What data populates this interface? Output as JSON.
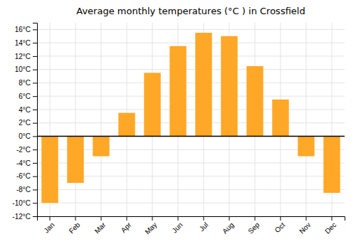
{
  "chart_data": {
    "type": "bar",
    "title": "Average monthly temperatures (°C ) in Crossfield",
    "categories": [
      "Jan",
      "Feb",
      "Mar",
      "Apr",
      "May",
      "Jun",
      "Jul",
      "Aug",
      "Sep",
      "Oct",
      "Nov",
      "Dec"
    ],
    "values": [
      -10.0,
      -7.0,
      -3.0,
      3.5,
      9.5,
      13.5,
      15.5,
      15.0,
      10.5,
      5.5,
      -3.0,
      -8.5
    ],
    "color": "#FFA726",
    "ylim": [
      -12,
      17
    ],
    "yticks": [
      {
        "value": -12,
        "label": "-12°C"
      },
      {
        "value": -10,
        "label": "-10°C"
      },
      {
        "value": -8,
        "label": "-8°C"
      },
      {
        "value": -6,
        "label": "-6°C"
      },
      {
        "value": -4,
        "label": "-4°C"
      },
      {
        "value": -2,
        "label": "-2°C"
      },
      {
        "value": 0,
        "label": "0°C"
      },
      {
        "value": 2,
        "label": "2°C"
      },
      {
        "value": 4,
        "label": "4°C"
      },
      {
        "value": 6,
        "label": "6°C"
      },
      {
        "value": 8,
        "label": "8°C"
      },
      {
        "value": 10,
        "label": "10°C"
      },
      {
        "value": 12,
        "label": "12°C"
      },
      {
        "value": 14,
        "label": "14°C"
      },
      {
        "value": 16,
        "label": "16°C"
      }
    ],
    "grid": true
  }
}
